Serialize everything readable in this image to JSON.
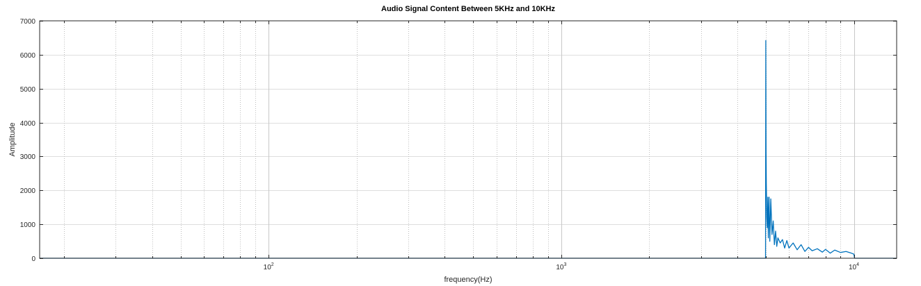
{
  "chart_data": {
    "type": "line",
    "title": "Audio Signal Content Between 5KHz and 10KHz",
    "xlabel": "frequency(Hz)",
    "ylabel": "Amplitude",
    "xscale": "log",
    "xlim": [
      16.5,
      14000
    ],
    "ylim": [
      0,
      7000
    ],
    "yticks": [
      0,
      1000,
      2000,
      3000,
      4000,
      5000,
      6000,
      7000
    ],
    "xtick_labels": [
      {
        "value": 100,
        "base": "10",
        "exp": "2"
      },
      {
        "value": 1000,
        "base": "10",
        "exp": "3"
      },
      {
        "value": 10000,
        "base": "10",
        "exp": "4"
      }
    ],
    "grid": true,
    "series_color": "#0072BD",
    "series": [
      {
        "x": [
          16.5,
          1000,
          4990,
          5000,
          5010,
          5020,
          5040,
          5060,
          5080,
          5100,
          5130,
          5160,
          5200,
          5250,
          5300,
          5350,
          5400,
          5450,
          5500,
          5600,
          5700,
          5800,
          5900,
          6000,
          6200,
          6400,
          6600,
          6800,
          7000,
          7200,
          7500,
          7800,
          8000,
          8300,
          8600,
          9000,
          9400,
          9800,
          10000,
          10050,
          14000
        ],
        "y": [
          0,
          0,
          0,
          6420,
          3200,
          2200,
          1200,
          900,
          1800,
          600,
          1800,
          500,
          1750,
          700,
          1100,
          400,
          800,
          350,
          600,
          450,
          550,
          300,
          520,
          300,
          450,
          250,
          400,
          200,
          320,
          220,
          280,
          180,
          260,
          150,
          240,
          170,
          200,
          150,
          120,
          0,
          0
        ]
      }
    ]
  }
}
